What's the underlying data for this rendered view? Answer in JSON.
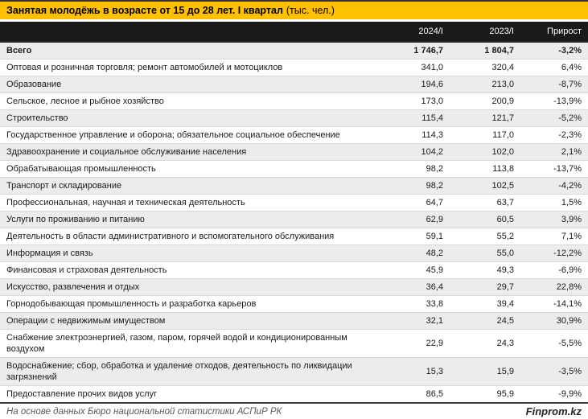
{
  "title": {
    "main": "Занятая молодёжь в возрасте от 15 до 28 лет. I квартал",
    "unit": "(тыс. чел.)"
  },
  "colors": {
    "title_bar_bg": "#FFC000",
    "title_text": "#000000",
    "header_band_bg": "#1A1A1A",
    "header_text": "#FFFFFF",
    "row_stripe": "#ECECEC",
    "row_border": "#D9D9D9",
    "footer_text": "#595959",
    "brand_text": "#262626"
  },
  "table": {
    "columns": [
      "2024/I",
      "2023/I",
      "Прирост"
    ],
    "rows": [
      {
        "label": "Всего",
        "v2024": "1 746,7",
        "v2023": "1 804,7",
        "growth": "-3,2%",
        "bold": true
      },
      {
        "label": "Оптовая и розничная торговля; ремонт автомобилей и мотоциклов",
        "v2024": "341,0",
        "v2023": "320,4",
        "growth": "6,4%",
        "bold": false
      },
      {
        "label": "Образование",
        "v2024": "194,6",
        "v2023": "213,0",
        "growth": "-8,7%",
        "bold": false
      },
      {
        "label": "Сельское, лесное и рыбное хозяйство",
        "v2024": "173,0",
        "v2023": "200,9",
        "growth": "-13,9%",
        "bold": false
      },
      {
        "label": "Строительство",
        "v2024": "115,4",
        "v2023": "121,7",
        "growth": "-5,2%",
        "bold": false
      },
      {
        "label": "Государственное управление и оборона; обязательное социальное обеспечение",
        "v2024": "114,3",
        "v2023": "117,0",
        "growth": "-2,3%",
        "bold": false
      },
      {
        "label": "Здравоохранение и социальное обслуживание населения",
        "v2024": "104,2",
        "v2023": "102,0",
        "growth": "2,1%",
        "bold": false
      },
      {
        "label": "Обрабатывающая промышленность",
        "v2024": "98,2",
        "v2023": "113,8",
        "growth": "-13,7%",
        "bold": false
      },
      {
        "label": "Транспорт и складирование",
        "v2024": "98,2",
        "v2023": "102,5",
        "growth": "-4,2%",
        "bold": false
      },
      {
        "label": "Профессиональная, научная и техническая деятельность",
        "v2024": "64,7",
        "v2023": "63,7",
        "growth": "1,5%",
        "bold": false
      },
      {
        "label": "Услуги по проживанию и питанию",
        "v2024": "62,9",
        "v2023": "60,5",
        "growth": "3,9%",
        "bold": false
      },
      {
        "label": "Деятельность в области административного и вспомогательного обслуживания",
        "v2024": "59,1",
        "v2023": "55,2",
        "growth": "7,1%",
        "bold": false
      },
      {
        "label": "Информация и связь",
        "v2024": "48,2",
        "v2023": "55,0",
        "growth": "-12,2%",
        "bold": false
      },
      {
        "label": "Финансовая и страховая деятельность",
        "v2024": "45,9",
        "v2023": "49,3",
        "growth": "-6,9%",
        "bold": false
      },
      {
        "label": "Искусство, развлечения и отдых",
        "v2024": "36,4",
        "v2023": "29,7",
        "growth": "22,8%",
        "bold": false
      },
      {
        "label": "Горнодобывающая промышленность и разработка карьеров",
        "v2024": "33,8",
        "v2023": "39,4",
        "growth": "-14,1%",
        "bold": false
      },
      {
        "label": "Операции с недвижимым имуществом",
        "v2024": "32,1",
        "v2023": "24,5",
        "growth": "30,9%",
        "bold": false
      },
      {
        "label": "Снабжение электроэнергией, газом, паром, горячей водой и кондиционированным воздухом",
        "v2024": "22,9",
        "v2023": "24,3",
        "growth": "-5,5%",
        "bold": false
      },
      {
        "label": "Водоснабжение; сбор, обработка и удаление отходов, деятельность по ликвидации загрязнений",
        "v2024": "15,3",
        "v2023": "15,9",
        "growth": "-3,5%",
        "bold": false
      },
      {
        "label": "Предоставление прочих видов услуг",
        "v2024": "86,5",
        "v2023": "95,9",
        "growth": "-9,9%",
        "bold": false
      }
    ]
  },
  "footer": {
    "source": "На основе данных Бюро национальной статистики АСПиР РК",
    "brand": "Finprom.kz"
  },
  "chart_data": {
    "type": "table",
    "title": "Занятая молодёжь в возрасте от 15 до 28 лет. I квартал (тыс. чел.)",
    "columns": [
      "2024/I",
      "2023/I",
      "Прирост"
    ],
    "categories": [
      "Всего",
      "Оптовая и розничная торговля; ремонт автомобилей и мотоциклов",
      "Образование",
      "Сельское, лесное и рыбное хозяйство",
      "Строительство",
      "Государственное управление и оборона; обязательное социальное обеспечение",
      "Здравоохранение и социальное обслуживание населения",
      "Обрабатывающая промышленность",
      "Транспорт и складирование",
      "Профессиональная, научная и техническая деятельность",
      "Услуги по проживанию и питанию",
      "Деятельность в области административного и вспомогательного обслуживания",
      "Информация и связь",
      "Финансовая и страховая деятельность",
      "Искусство, развлечения и отдых",
      "Горнодобывающая промышленность и разработка карьеров",
      "Операции с недвижимым имуществом",
      "Снабжение электроэнергией, газом, паром, горячей водой и кондиционированным воздухом",
      "Водоснабжение; сбор, обработка и удаление отходов, деятельность по ликвидации загрязнений",
      "Предоставление прочих видов услуг"
    ],
    "series": [
      {
        "name": "2024/I",
        "values": [
          1746.7,
          341.0,
          194.6,
          173.0,
          115.4,
          114.3,
          104.2,
          98.2,
          98.2,
          64.7,
          62.9,
          59.1,
          48.2,
          45.9,
          36.4,
          33.8,
          32.1,
          22.9,
          15.3,
          86.5
        ]
      },
      {
        "name": "2023/I",
        "values": [
          1804.7,
          320.4,
          213.0,
          200.9,
          121.7,
          117.0,
          102.0,
          113.8,
          102.5,
          63.7,
          60.5,
          55.2,
          55.0,
          49.3,
          29.7,
          39.4,
          24.5,
          24.3,
          15.9,
          95.9
        ]
      },
      {
        "name": "Прирост, %",
        "values": [
          -3.2,
          6.4,
          -8.7,
          -13.9,
          -5.2,
          -2.3,
          2.1,
          -13.7,
          -4.2,
          1.5,
          3.9,
          7.1,
          -12.2,
          -6.9,
          22.8,
          -14.1,
          30.9,
          -5.5,
          -3.5,
          -9.9
        ]
      }
    ]
  }
}
